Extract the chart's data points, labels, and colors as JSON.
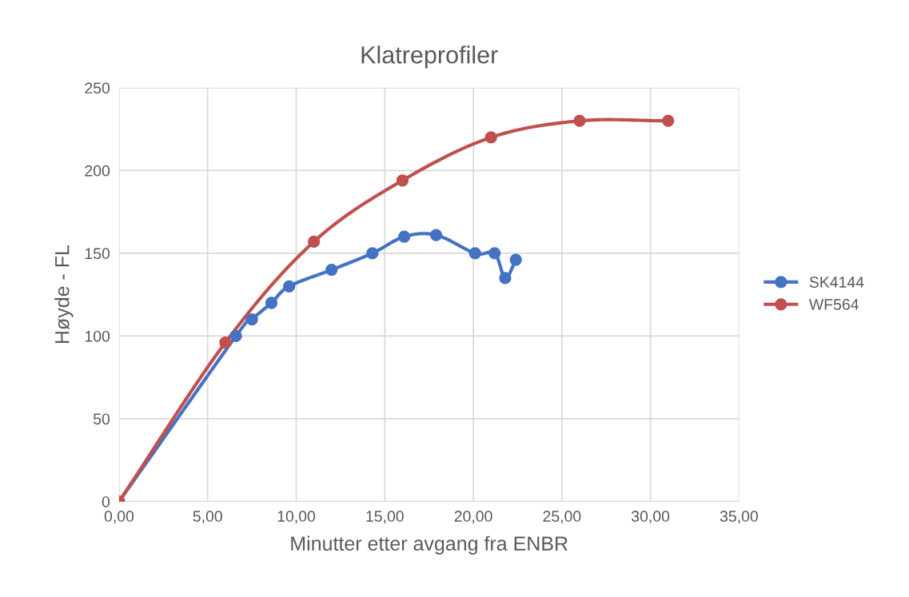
{
  "chart_data": {
    "type": "line",
    "title": "Klatreprofiler",
    "xlabel": "Minutter etter avgang fra ENBR",
    "ylabel": "Høyde - FL",
    "series": [
      {
        "name": "SK4144",
        "color": "#4472c4",
        "x": [
          0,
          6.6,
          7.5,
          8.6,
          9.6,
          12,
          14.3,
          16.1,
          17.9,
          20.1,
          21.2,
          21.8,
          22.4
        ],
        "values": [
          0,
          100,
          110,
          120,
          130,
          140,
          150,
          160,
          161,
          150,
          150,
          135,
          146
        ]
      },
      {
        "name": "WF564",
        "color": "#c0504d",
        "x": [
          0,
          6,
          11,
          16,
          21,
          26,
          31
        ],
        "values": [
          0,
          96,
          157,
          194,
          220,
          230,
          230
        ]
      }
    ],
    "xlim": [
      0,
      35
    ],
    "xticks": [
      {
        "value": 0,
        "label": "0,00"
      },
      {
        "value": 5,
        "label": "5,00"
      },
      {
        "value": 10,
        "label": "10,00"
      },
      {
        "value": 15,
        "label": "15,00"
      },
      {
        "value": 20,
        "label": "20,00"
      },
      {
        "value": 25,
        "label": "25,00"
      },
      {
        "value": 30,
        "label": "30,00"
      },
      {
        "value": 35,
        "label": "35,00"
      }
    ],
    "ylim": [
      0,
      250
    ],
    "yticks": [
      0,
      50,
      100,
      150,
      200,
      250
    ],
    "grid": true,
    "legend": "right",
    "marker": "circle",
    "line_style": "solid"
  }
}
